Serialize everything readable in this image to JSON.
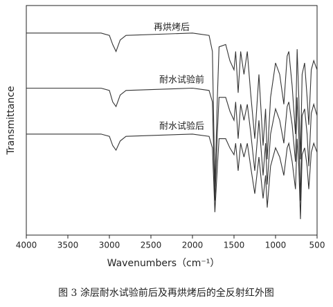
{
  "chart_data": {
    "type": "line",
    "caption": "图 3 涂层耐水试验前后及再烘烤后的全反射红外图",
    "x_label": "Wavenumbers（cm⁻¹）",
    "y_label": "Transmittance",
    "xlim": [
      4000,
      500
    ],
    "ylim": [
      0,
      100
    ],
    "xticks": [
      4000,
      3500,
      3000,
      2500,
      2000,
      1500,
      1000,
      500
    ],
    "x": [
      4000,
      3500,
      3100,
      3000,
      2960,
      2920,
      2870,
      2800,
      2000,
      1800,
      1760,
      1730,
      1700,
      1680,
      1600,
      1550,
      1500,
      1480,
      1450,
      1420,
      1380,
      1340,
      1300,
      1250,
      1200,
      1150,
      1120,
      1100,
      1060,
      1000,
      950,
      900,
      860,
      840,
      800,
      760,
      740,
      720,
      700,
      680,
      650,
      620,
      600,
      570,
      540,
      500
    ],
    "series": [
      {
        "name": "再烘烤后",
        "color": "#333333",
        "values": [
          88,
          88,
          88,
          87,
          83,
          80,
          85,
          87,
          88,
          87,
          80,
          21,
          60,
          82,
          83,
          76,
          72,
          80,
          62,
          80,
          70,
          80,
          62,
          42,
          70,
          39,
          55,
          33,
          60,
          75,
          70,
          57,
          78,
          80,
          65,
          44,
          81,
          60,
          33,
          70,
          75,
          60,
          48,
          72,
          76,
          72
        ]
      },
      {
        "name": "耐水试验前",
        "color": "#333333",
        "values": [
          64,
          64,
          64,
          63,
          58,
          56,
          61,
          63,
          64,
          63,
          58,
          15,
          45,
          60,
          60,
          54,
          50,
          58,
          42,
          57,
          50,
          57,
          45,
          28,
          50,
          26,
          40,
          22,
          44,
          55,
          50,
          40,
          56,
          58,
          48,
          32,
          60,
          44,
          15,
          52,
          55,
          44,
          30,
          53,
          57,
          52
        ]
      },
      {
        "name": "耐水试验后",
        "color": "#333333",
        "values": [
          44,
          44,
          44,
          43,
          39,
          37,
          41,
          43,
          44,
          43,
          38,
          10,
          30,
          42,
          42,
          38,
          35,
          40,
          28,
          40,
          34,
          40,
          30,
          18,
          34,
          16,
          26,
          12,
          30,
          38,
          34,
          26,
          38,
          40,
          32,
          20,
          42,
          30,
          7,
          35,
          38,
          30,
          20,
          36,
          40,
          36
        ]
      }
    ]
  }
}
